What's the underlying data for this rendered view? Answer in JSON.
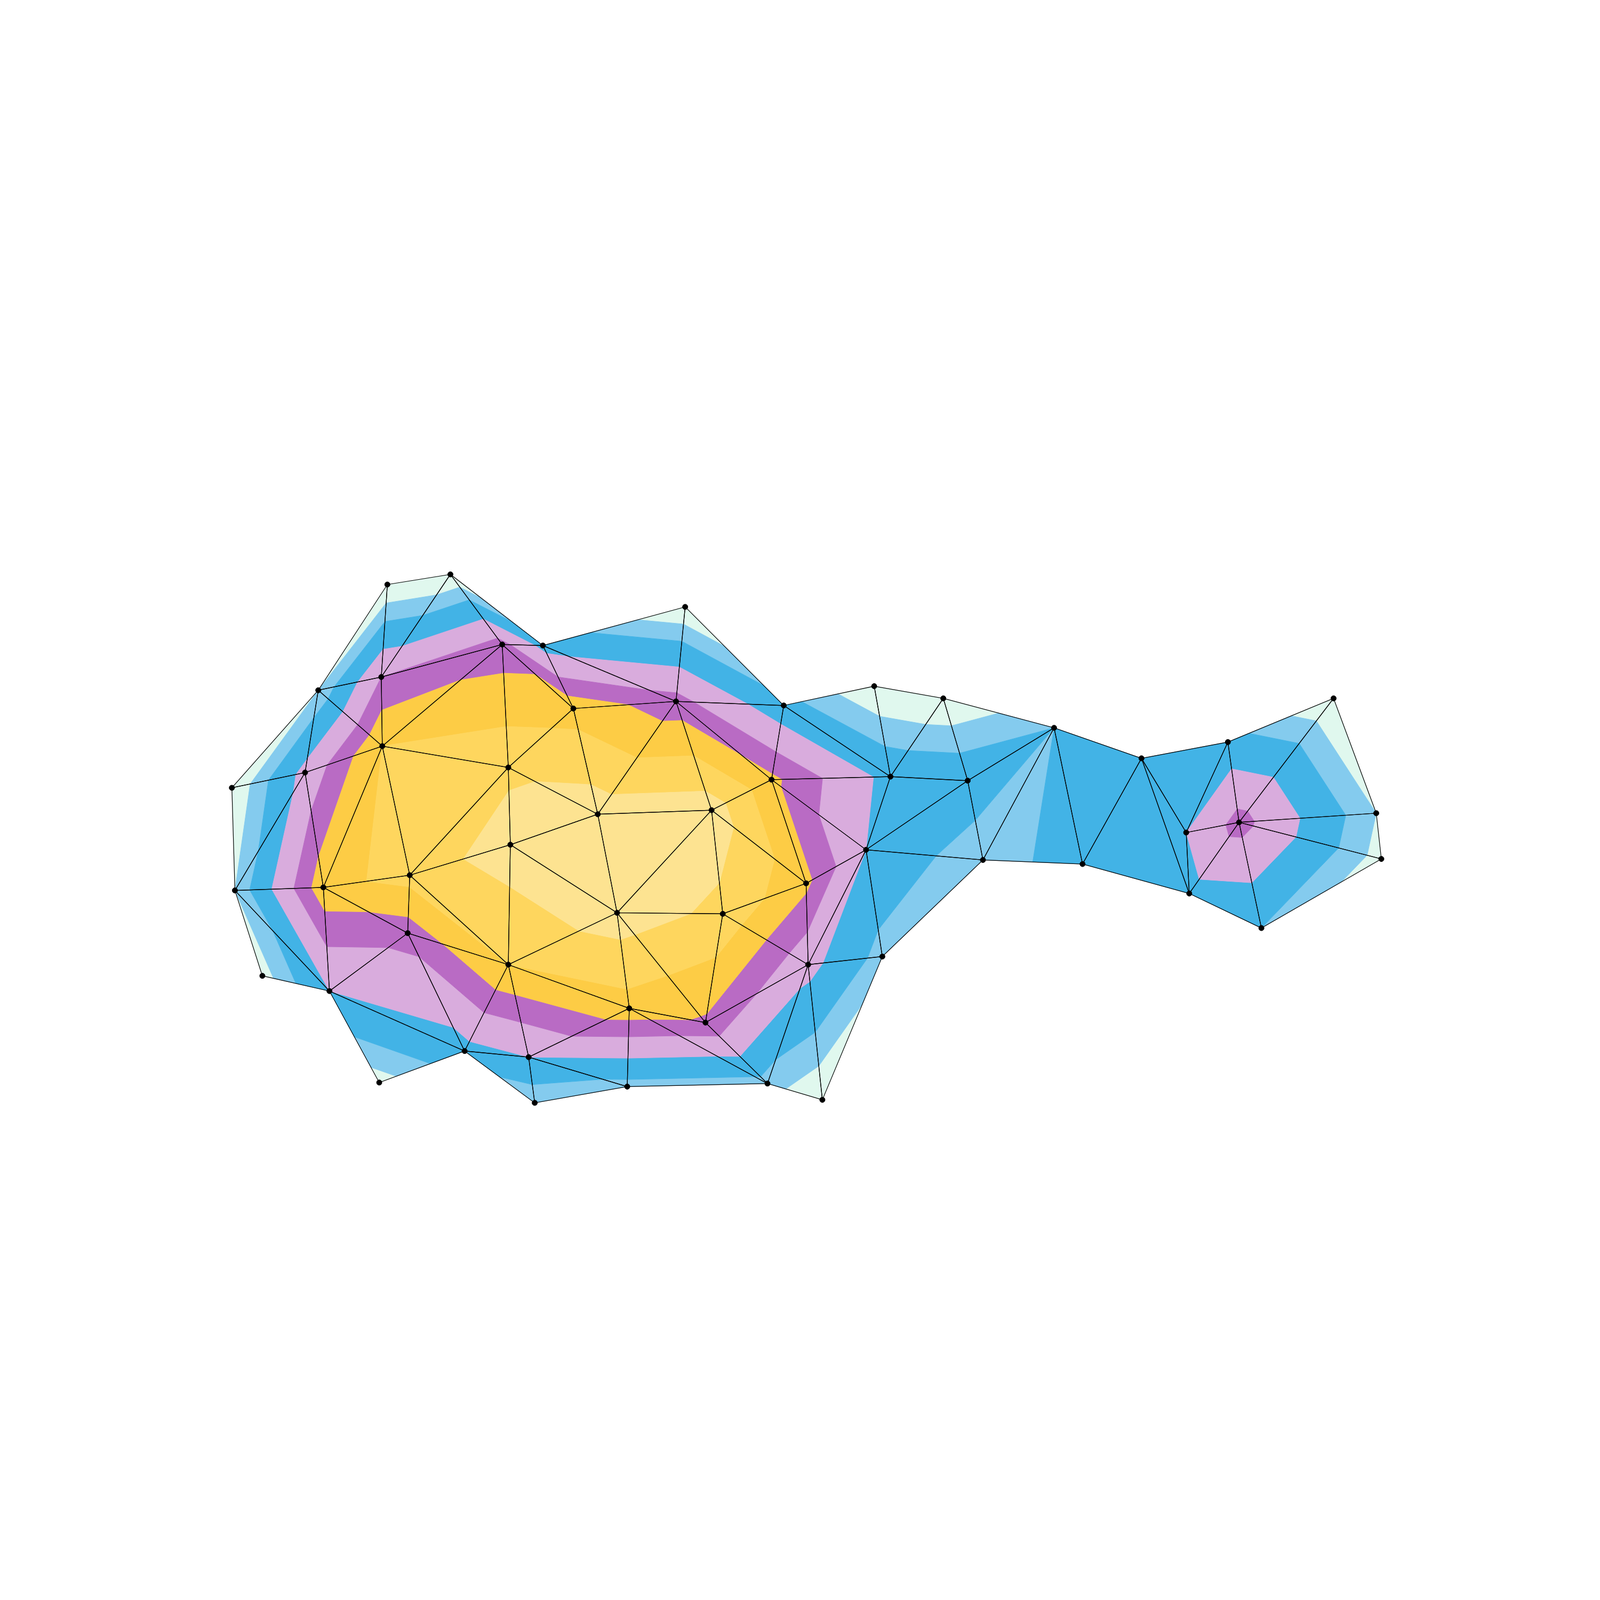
{
  "chart_data": {
    "type": "tricontour",
    "x": [
      378,
      440,
      310,
      372,
      491,
      531,
      671,
      561,
      662,
      768,
      857,
      925,
      225,
      297,
      373,
      497,
      585,
      697,
      756,
      873,
      949,
      1034,
      228,
      315,
      400,
      499,
      604,
      708,
      790,
      849,
      964,
      1062,
      255,
      321,
      398,
      497,
      616,
      691,
      792,
      865,
      370,
      454,
      517,
      523,
      614,
      752,
      806,
      1120,
      1205,
      1309,
      1164,
      1216,
      1351,
      1356,
      1167,
      1238
    ],
    "y": [
      996,
      1006,
      892,
      905,
      937,
      936,
      974,
      874,
      881,
      877,
      896,
      884,
      796,
      811,
      837,
      816,
      770,
      774,
      804,
      807,
      803,
      855,
      695,
      698,
      710,
      740,
      673,
      672,
      702,
      735,
      725,
      721,
      611,
      596,
      653,
      622,
      579,
      565,
      622,
      630,
      506,
      537,
      531,
      486,
      502,
      505,
      489,
      825,
      841,
      884,
      752,
      762,
      771,
      726,
      692,
      658
    ],
    "z": [
      0,
      0,
      0.1,
      0.5,
      0.55,
      0.3,
      0,
      0.7,
      0.55,
      0.25,
      0,
      0,
      0,
      0.4,
      0.75,
      0.85,
      0.95,
      0.95,
      0.65,
      0.3,
      0.3,
      0.2,
      0.1,
      0.7,
      0.8,
      0.95,
      0.95,
      0.85,
      0.65,
      0.35,
      0.1,
      0.3,
      0.05,
      0.35,
      0.55,
      0.75,
      0.7,
      0.6,
      0.4,
      0.15,
      0.05,
      0.3,
      0.35,
      0.1,
      0.15,
      0.15,
      0,
      0.3,
      0.25,
      0,
      0.35,
      0.55,
      0.1,
      0.05,
      0.3,
      0.2
    ],
    "triangles": [
      [
        0,
        1,
        3
      ],
      [
        1,
        3,
        4
      ],
      [
        1,
        4,
        5
      ],
      [
        0,
        2,
        3
      ],
      [
        2,
        3,
        14
      ],
      [
        2,
        13,
        14
      ],
      [
        2,
        12,
        13
      ],
      [
        3,
        4,
        14
      ],
      [
        4,
        14,
        15
      ],
      [
        4,
        7,
        15
      ],
      [
        4,
        5,
        7
      ],
      [
        5,
        7,
        8
      ],
      [
        5,
        6,
        8
      ],
      [
        6,
        8,
        9
      ],
      [
        7,
        15,
        16
      ],
      [
        7,
        8,
        16
      ],
      [
        8,
        16,
        17
      ],
      [
        8,
        17,
        18
      ],
      [
        8,
        9,
        18
      ],
      [
        9,
        18,
        19
      ],
      [
        9,
        10,
        19
      ],
      [
        10,
        11,
        19
      ],
      [
        11,
        19,
        20
      ],
      [
        11,
        20,
        21
      ],
      [
        20,
        21,
        30
      ],
      [
        21,
        30,
        31
      ],
      [
        21,
        31,
        47
      ],
      [
        18,
        19,
        29
      ],
      [
        19,
        20,
        29
      ],
      [
        20,
        29,
        30
      ],
      [
        17,
        18,
        28
      ],
      [
        18,
        28,
        29
      ],
      [
        16,
        17,
        26
      ],
      [
        17,
        26,
        27
      ],
      [
        17,
        27,
        28
      ],
      [
        15,
        16,
        25
      ],
      [
        16,
        25,
        26
      ],
      [
        14,
        15,
        24
      ],
      [
        15,
        24,
        25
      ],
      [
        13,
        14,
        23
      ],
      [
        14,
        23,
        24
      ],
      [
        12,
        13,
        22
      ],
      [
        13,
        22,
        23
      ],
      [
        22,
        23,
        33
      ],
      [
        22,
        32,
        33
      ],
      [
        23,
        24,
        34
      ],
      [
        23,
        33,
        34
      ],
      [
        24,
        25,
        35
      ],
      [
        24,
        34,
        35
      ],
      [
        25,
        26,
        35
      ],
      [
        26,
        35,
        36
      ],
      [
        26,
        27,
        37
      ],
      [
        26,
        36,
        37
      ],
      [
        27,
        28,
        38
      ],
      [
        27,
        37,
        38
      ],
      [
        28,
        29,
        38
      ],
      [
        29,
        38,
        39
      ],
      [
        29,
        30,
        39
      ],
      [
        33,
        40,
        41
      ],
      [
        33,
        34,
        41
      ],
      [
        34,
        35,
        41
      ],
      [
        35,
        41,
        42
      ],
      [
        41,
        42,
        43
      ],
      [
        35,
        36,
        42
      ],
      [
        36,
        42,
        44
      ],
      [
        42,
        43,
        44
      ],
      [
        36,
        44,
        45
      ],
      [
        36,
        37,
        45
      ],
      [
        37,
        38,
        45
      ],
      [
        38,
        45,
        46
      ],
      [
        38,
        39,
        46
      ],
      [
        31,
        47,
        54
      ],
      [
        47,
        50,
        54
      ],
      [
        47,
        48,
        50
      ],
      [
        48,
        50,
        51
      ],
      [
        50,
        51,
        54
      ],
      [
        51,
        54,
        55
      ],
      [
        48,
        49,
        51
      ],
      [
        49,
        51,
        52
      ],
      [
        51,
        52,
        53
      ],
      [
        51,
        53,
        55
      ]
    ],
    "levels": [
      0,
      0.1,
      0.2,
      0.35,
      0.5,
      0.62,
      0.75,
      0.88,
      1.0
    ],
    "colors": [
      "#e0f8ee",
      "#84cbee",
      "#42b3e6",
      "#d9acdd",
      "#b96bc4",
      "#fdcc45",
      "#fed65e",
      "#fde391"
    ],
    "xlim": [
      0,
      1568
    ],
    "ylim": [
      0,
      1568
    ],
    "marker": "circle",
    "color": "#000000",
    "tick_labels": false,
    "grid": false
  }
}
